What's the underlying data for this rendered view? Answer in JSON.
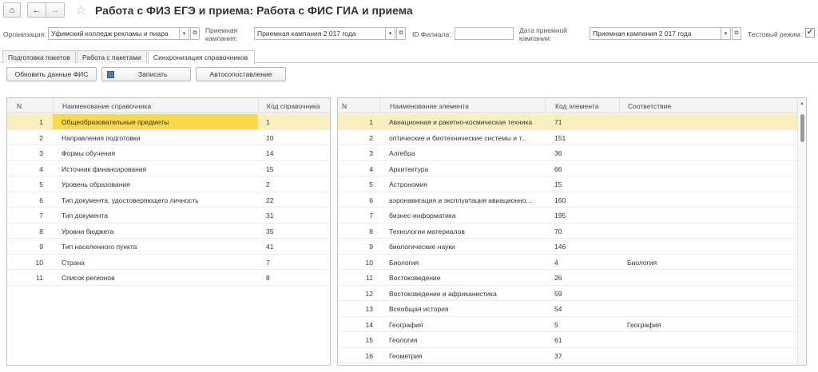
{
  "title": "Работа с ФИЗ ЕГЭ и приема: Работа с ФИС ГИА и приема",
  "nav": {
    "home": "⌂",
    "back": "←",
    "forward": "→",
    "star": "☆"
  },
  "filters": {
    "org_label": "Организация:",
    "org_value": "Уфимский колледж рекламы и пиара",
    "campaign_label_1": "Приемная",
    "campaign_label_2": "кампания:",
    "campaign_value": "Приемная кампания 2 017 года",
    "branch_label": "ID Филиала:",
    "branch_value": "",
    "date_label_1": "Дата приемной",
    "date_label_2": "кампании:",
    "date_value": "Приемная кампания 2 017 года",
    "test_label": "Тестовый режим:",
    "test_checked": "✔"
  },
  "tabs": [
    {
      "label": "Подготовка пакетов"
    },
    {
      "label": "Работа с пакетами"
    },
    {
      "label": "Синхронизация справочников"
    }
  ],
  "toolbar": {
    "refresh_label": "Обновить данные ФИС",
    "save_label": "Записать",
    "auto_label": "Автосопоставление"
  },
  "left_table": {
    "columns": [
      "N",
      "Наименование справочника",
      "Код справочника"
    ],
    "rows": [
      [
        "1",
        "Общеобразовательные предметы",
        "1"
      ],
      [
        "2",
        "Направления подготовки",
        "10"
      ],
      [
        "3",
        "Формы обучения",
        "14"
      ],
      [
        "4",
        "Источник финансирования",
        "15"
      ],
      [
        "5",
        "Уровень образования",
        "2"
      ],
      [
        "6",
        "Тип документа, удостоверяющего личность",
        "22"
      ],
      [
        "7",
        "Тип документа",
        "31"
      ],
      [
        "8",
        "Уровни бюджета",
        "35"
      ],
      [
        "9",
        "Тип населенного пункта",
        "41"
      ],
      [
        "10",
        "Страна",
        "7"
      ],
      [
        "11",
        "Список регионов",
        "8"
      ]
    ]
  },
  "right_table": {
    "columns": [
      "N",
      "Наименование элемента",
      "Код элемента",
      "Соответствие"
    ],
    "rows": [
      [
        "1",
        "Авиационная и ракетно-космическая техника",
        "71",
        ""
      ],
      [
        "2",
        "оптические и биотехнические  системы и т...",
        "151",
        ""
      ],
      [
        "3",
        "Алгебра",
        "36",
        ""
      ],
      [
        "4",
        "Архитектура",
        "66",
        ""
      ],
      [
        "5",
        "Астрономия",
        "15",
        ""
      ],
      [
        "6",
        "аэронавигация и эксплуатация авиационно...",
        "160",
        ""
      ],
      [
        "7",
        "бизнес-информатика",
        "195",
        ""
      ],
      [
        "8",
        "Технологии материалов",
        "70",
        ""
      ],
      [
        "9",
        "биологические науки",
        "146",
        ""
      ],
      [
        "10",
        "Биология",
        "4",
        "Биология"
      ],
      [
        "11",
        "Востоковедение",
        "26",
        ""
      ],
      [
        "12",
        "Востоковедение и африканистика",
        "59",
        ""
      ],
      [
        "13",
        "Всеобщая история",
        "54",
        ""
      ],
      [
        "14",
        "География",
        "5",
        "География"
      ],
      [
        "15",
        "Геология",
        "61",
        ""
      ],
      [
        "16",
        "Геометрия",
        "37",
        ""
      ]
    ]
  },
  "colors": {
    "selection": "#fbefc0",
    "highlight": "#fad84b"
  }
}
